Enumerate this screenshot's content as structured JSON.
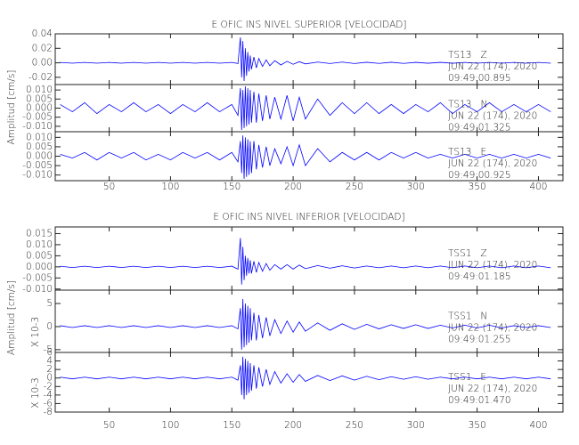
{
  "chart_data": [
    {
      "type": "line",
      "title": "E OFIC INS NIVEL SUPERIOR [VELOCIDAD]",
      "y_label": "Amplitud [cm/s]",
      "xlim": [
        6,
        420
      ],
      "xticks": [
        50,
        100,
        150,
        200,
        250,
        300,
        350,
        400
      ],
      "x": [
        10,
        20,
        30,
        40,
        50,
        60,
        70,
        80,
        90,
        100,
        110,
        120,
        130,
        140,
        150,
        155,
        157,
        158,
        159,
        160,
        161,
        162,
        163,
        164,
        165,
        166,
        168,
        170,
        172,
        175,
        178,
        181,
        185,
        190,
        195,
        200,
        205,
        210,
        220,
        230,
        240,
        250,
        260,
        270,
        280,
        290,
        300,
        310,
        320,
        330,
        340,
        350,
        360,
        370,
        380,
        390,
        400,
        410
      ],
      "series": [
        {
          "name": "TS13   Z",
          "date": "JUN 22 (174), 2020",
          "time": "09:49:00.895",
          "color": "#0000ff",
          "ylim": [
            -0.03,
            0.04
          ],
          "yticks": [
            {
              "value": 0.04,
              "label": "0.04"
            },
            {
              "value": 0.02,
              "label": "0.02"
            },
            {
              "value": 0,
              "label": "0.00"
            },
            {
              "value": -0.02,
              "label": "-0.02"
            }
          ],
          "values": [
            0.0005,
            -0.0005,
            0.0005,
            -0.0005,
            0.0005,
            -0.0005,
            0.0005,
            -0.0005,
            0.0005,
            -0.0005,
            0.0005,
            -0.0005,
            0.0005,
            -0.0005,
            0.0005,
            -0.001,
            0.035,
            -0.02,
            0.03,
            -0.025,
            0.02,
            -0.018,
            0.015,
            -0.012,
            0.01,
            -0.009,
            0.008,
            -0.007,
            0.006,
            -0.005,
            0.004,
            -0.004,
            0.003,
            -0.003,
            0.002,
            -0.002,
            0.0015,
            -0.0015,
            0.001,
            -0.001,
            0.001,
            -0.001,
            0.0008,
            -0.0008,
            0.0008,
            -0.0008,
            0.0006,
            -0.0006,
            0.0006,
            -0.0006,
            0.0005,
            -0.0005,
            0.0005,
            -0.0005,
            0.0005,
            -0.0005,
            0.0005,
            -0.0005
          ]
        },
        {
          "name": "TS13   N",
          "date": "JUN 22 (174), 2020",
          "time": "09:49:01.325",
          "color": "#0000ff",
          "ylim": [
            -0.013,
            0.013
          ],
          "yticks": [
            {
              "value": 0.01,
              "label": "0.010"
            },
            {
              "value": 0.005,
              "label": "0.005"
            },
            {
              "value": 0,
              "label": "0.000"
            },
            {
              "value": -0.005,
              "label": "-0.005"
            },
            {
              "value": -0.01,
              "label": "-0.010"
            }
          ],
          "values": [
            0.002,
            -0.002,
            0.003,
            -0.003,
            0.002,
            -0.002,
            0.003,
            -0.002,
            0.002,
            -0.003,
            0.002,
            -0.002,
            0.003,
            -0.002,
            0.002,
            -0.004,
            0.011,
            -0.012,
            0.01,
            -0.011,
            0.012,
            -0.01,
            0.011,
            -0.009,
            0.01,
            -0.008,
            0.009,
            -0.008,
            0.008,
            -0.007,
            0.007,
            -0.006,
            0.006,
            -0.006,
            0.007,
            -0.007,
            0.006,
            -0.006,
            0.005,
            -0.004,
            0.003,
            -0.003,
            0.003,
            -0.003,
            0.002,
            -0.003,
            0.002,
            -0.002,
            0.003,
            -0.003,
            0.002,
            -0.002,
            0.003,
            -0.002,
            0.002,
            -0.002,
            0.002,
            -0.002
          ]
        },
        {
          "name": "TS13   E",
          "date": "JUN 22 (174), 2020",
          "time": "09:49:00.925",
          "color": "#0000ff",
          "ylim": [
            -0.013,
            0.013
          ],
          "yticks": [
            {
              "value": 0.01,
              "label": "0.010"
            },
            {
              "value": 0.005,
              "label": "0.005"
            },
            {
              "value": 0,
              "label": "0.000"
            },
            {
              "value": -0.005,
              "label": "-0.005"
            },
            {
              "value": -0.01,
              "label": "-0.010"
            }
          ],
          "values": [
            0.001,
            -0.001,
            0.002,
            -0.002,
            0.002,
            -0.001,
            0.002,
            -0.002,
            0.001,
            -0.002,
            0.002,
            -0.001,
            0.002,
            -0.002,
            0.002,
            -0.003,
            0.008,
            -0.009,
            0.011,
            -0.012,
            0.01,
            -0.011,
            0.009,
            -0.01,
            0.008,
            -0.009,
            0.008,
            -0.007,
            0.006,
            -0.006,
            0.005,
            -0.005,
            0.004,
            -0.004,
            0.005,
            -0.005,
            0.006,
            -0.005,
            0.004,
            -0.003,
            0.002,
            -0.002,
            0.002,
            -0.002,
            0.002,
            -0.001,
            0.002,
            -0.001,
            0.001,
            -0.001,
            0.001,
            -0.001,
            0.001,
            -0.001,
            0.001,
            -0.001,
            0.001,
            -0.001
          ]
        }
      ]
    },
    {
      "type": "line",
      "title": "E OFIC INS NIVEL INFERIOR [VELOCIDAD]",
      "y_label": "Amplitud [cm/s]",
      "xlim": [
        6,
        420
      ],
      "xticks": [
        50,
        100,
        150,
        200,
        250,
        300,
        350,
        400
      ],
      "x": [
        10,
        20,
        30,
        40,
        50,
        60,
        70,
        80,
        90,
        100,
        110,
        120,
        130,
        140,
        150,
        155,
        157,
        158,
        159,
        160,
        161,
        162,
        163,
        164,
        165,
        166,
        168,
        170,
        172,
        175,
        178,
        181,
        185,
        190,
        195,
        200,
        205,
        210,
        220,
        230,
        240,
        250,
        260,
        270,
        280,
        290,
        300,
        310,
        320,
        330,
        340,
        350,
        360,
        370,
        380,
        390,
        400,
        410
      ],
      "series": [
        {
          "name": "TSS1   Z",
          "date": "JUN 22 (174), 2020",
          "time": "09:49:01.185",
          "color": "#0000ff",
          "ylim": [
            -0.0105,
            0.018
          ],
          "yticks": [
            {
              "value": 0.015,
              "label": "0.015"
            },
            {
              "value": 0.01,
              "label": "0.010"
            },
            {
              "value": 0.005,
              "label": "0.005"
            },
            {
              "value": 0,
              "label": "0.000"
            },
            {
              "value": -0.005,
              "label": "-0.005"
            },
            {
              "value": -0.01,
              "label": "-0.010"
            }
          ],
          "values": [
            0.0003,
            -0.0003,
            0.0003,
            -0.0003,
            0.0003,
            -0.0003,
            0.0003,
            -0.0003,
            0.0003,
            -0.0003,
            0.0003,
            -0.0003,
            0.0003,
            -0.0003,
            0.0003,
            -0.001,
            0.013,
            -0.008,
            0.009,
            -0.006,
            0.005,
            -0.004,
            0.004,
            -0.003,
            0.003,
            -0.003,
            0.0025,
            -0.0025,
            0.002,
            -0.002,
            0.0015,
            -0.0015,
            0.001,
            -0.001,
            0.001,
            -0.001,
            0.0008,
            -0.0008,
            0.0006,
            -0.0006,
            0.0005,
            -0.0005,
            0.0004,
            -0.0004,
            0.0004,
            -0.0004,
            0.0004,
            -0.0004,
            0.0004,
            -0.0004,
            0.0004,
            -0.0004,
            0.0004,
            -0.0004,
            0.0004,
            -0.0004,
            0.0004,
            -0.0004
          ]
        },
        {
          "name": "TSS1   N",
          "date": "JUN 22 (174), 2020",
          "time": "09:49:01.255",
          "color": "#0000ff",
          "multiplier": "X 10-3",
          "ylim": [
            -5.6,
            7.9
          ],
          "yticks": [
            5,
            0,
            -5
          ],
          "values": [
            0.2,
            -0.2,
            0.2,
            -0.2,
            0.2,
            -0.2,
            0.2,
            -0.2,
            0.2,
            -0.2,
            0.2,
            -0.2,
            0.2,
            -0.2,
            0.2,
            -0.5,
            4,
            -5,
            6,
            -4.5,
            5,
            -4,
            4.5,
            -3.5,
            4,
            -3,
            3,
            -3,
            2.5,
            -2.5,
            2,
            -2,
            1.5,
            -1.5,
            1.2,
            -1.2,
            1,
            -1,
            0.8,
            -0.8,
            0.6,
            -0.6,
            0.5,
            -0.5,
            0.4,
            -0.4,
            0.4,
            -0.4,
            0.3,
            -0.3,
            0.3,
            -0.3,
            0.3,
            -0.3,
            0.2,
            -0.2,
            0.2,
            -0.2
          ]
        },
        {
          "name": "TSS1   E",
          "date": "JUN 22 (174), 2020",
          "time": "09:49:01.470",
          "color": "#0000ff",
          "multiplier": "X 10-3",
          "ylim": [
            -8,
            6
          ],
          "yticks": [
            6,
            4,
            2,
            0,
            -2,
            -4,
            -6,
            -8
          ],
          "values": [
            0.2,
            -0.2,
            0.2,
            -0.2,
            0.2,
            -0.2,
            0.2,
            -0.2,
            0.2,
            -0.2,
            0.2,
            -0.2,
            0.2,
            -0.2,
            0.2,
            -0.5,
            3,
            -4,
            5,
            -5,
            4.5,
            -4,
            4,
            -3.5,
            3.5,
            -3,
            3,
            -2.5,
            2.5,
            -2,
            2,
            -1.5,
            1.5,
            -1.2,
            1,
            -1,
            0.8,
            -0.8,
            0.6,
            -0.6,
            0.5,
            -0.5,
            0.4,
            -0.4,
            0.3,
            -0.3,
            0.3,
            -0.3,
            0.2,
            -0.2,
            0.2,
            -0.2,
            0.2,
            -0.2,
            0.2,
            -0.2,
            0.2,
            -0.2
          ]
        }
      ]
    }
  ]
}
